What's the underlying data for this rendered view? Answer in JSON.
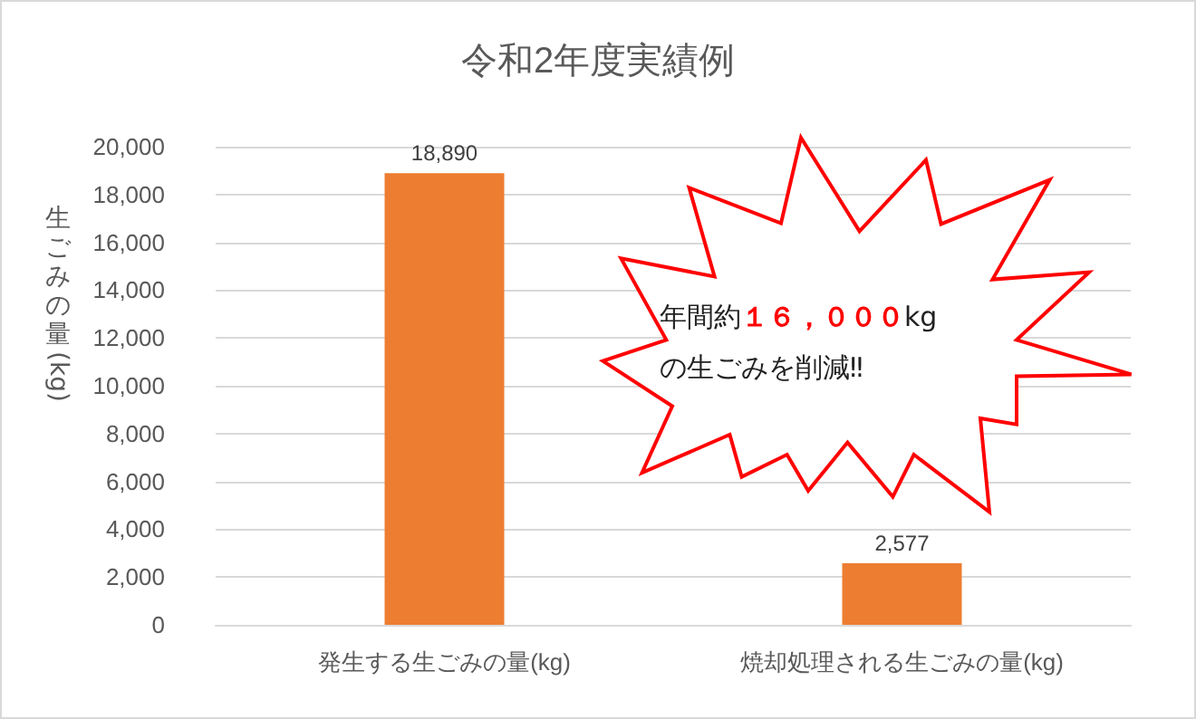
{
  "chart_data": {
    "type": "bar",
    "title": "令和2年度実績例",
    "ylabel": "生ごみの量(kg)",
    "categories": [
      "発生する生ごみの量(kg)",
      "焼却処理される生ごみの量(kg)"
    ],
    "values": [
      18890,
      2577
    ],
    "value_labels": [
      "18,890",
      "2,577"
    ],
    "color": "#ed7d31",
    "ylim": [
      0,
      20000
    ],
    "yticks": [
      0,
      {
        "value": 2000,
        "label": "2,000"
      },
      {
        "value": 4000,
        "label": "4,000"
      },
      {
        "value": 6000,
        "label": "6,000"
      },
      {
        "value": 8000,
        "label": "8,000"
      },
      {
        "value": 10000,
        "label": "10,000"
      },
      {
        "value": 12000,
        "label": "12,000"
      },
      {
        "value": 14000,
        "label": "14,000"
      },
      {
        "value": 16000,
        "label": "16,000"
      },
      {
        "value": 18000,
        "label": "18,000"
      },
      {
        "value": 20000,
        "label": "20,000"
      }
    ],
    "grid": "y",
    "annotations": [
      "年間約１６，０００kg\nの生ごみを削減‼"
    ]
  }
}
